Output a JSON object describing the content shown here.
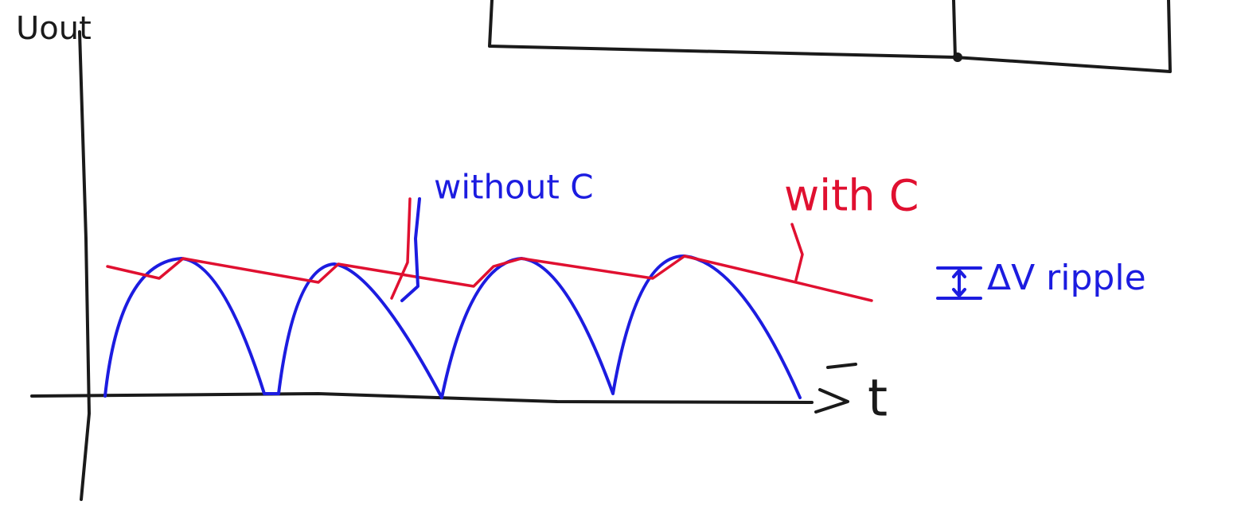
{
  "axes": {
    "y_label": "Uout",
    "x_label": "t"
  },
  "annotations": {
    "without_c": "without C",
    "with_c": "with C",
    "ripple": "ΔV ripple"
  }
}
